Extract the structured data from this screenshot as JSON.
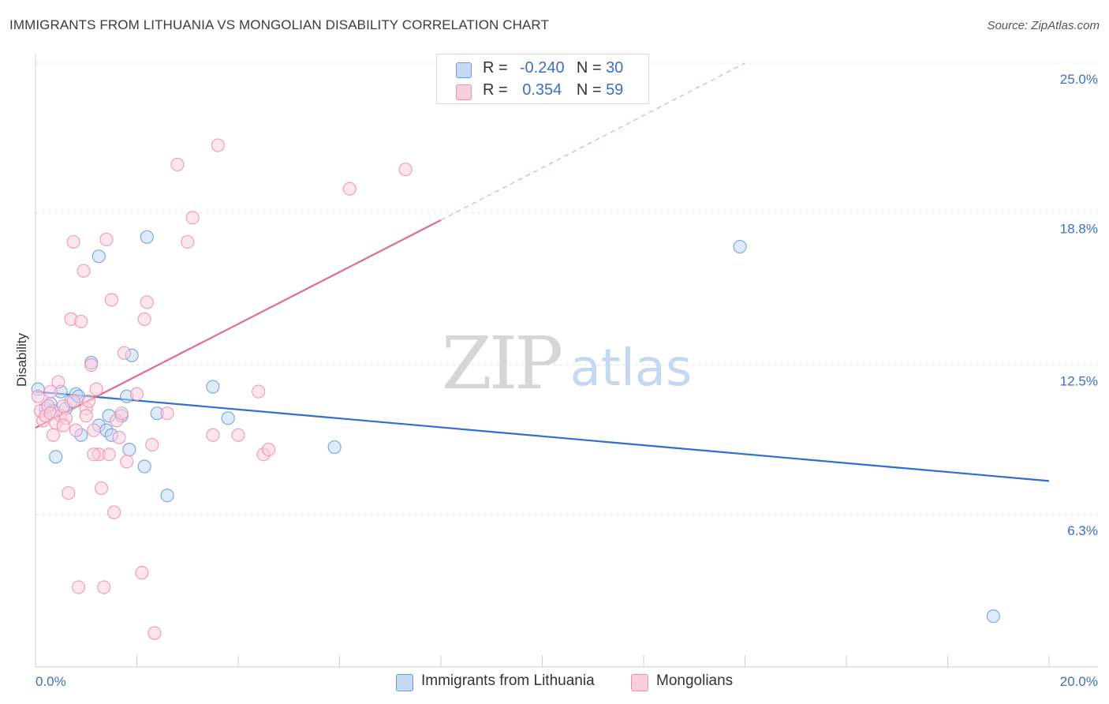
{
  "title": "IMMIGRANTS FROM LITHUANIA VS MONGOLIAN DISABILITY CORRELATION CHART",
  "source": "Source: ZipAtlas.com",
  "watermark": {
    "zip": "ZIP",
    "atlas": "atlas"
  },
  "legend": {
    "rows": [
      {
        "r_label": "R =",
        "r_value": "-0.240",
        "n_label": "N =",
        "n_value": "30"
      },
      {
        "r_label": "R =",
        "r_value": "0.354",
        "n_label": "N =",
        "n_value": "59"
      }
    ]
  },
  "colors": {
    "blue": "#6a9be0",
    "blue_fill": "#c5d9f5",
    "blue_line": "#2f6fce",
    "pink": "#ee8fb0",
    "pink_fill": "#f9cfdf",
    "pink_line": "#e46a93",
    "axis_text": "#3b6fc4"
  },
  "chart_data": {
    "type": "scatter",
    "title": "IMMIGRANTS FROM LITHUANIA VS MONGOLIAN DISABILITY CORRELATION CHART",
    "xlabel": "",
    "ylabel": "Disability",
    "xlim": [
      0,
      20
    ],
    "ylim": [
      0,
      25
    ],
    "x_tick_labels": [
      "0.0%",
      "20.0%"
    ],
    "y_ticks": [
      6.3,
      12.5,
      18.8,
      25.0
    ],
    "y_tick_labels": [
      "6.3%",
      "12.5%",
      "18.8%",
      "25.0%"
    ],
    "grid": true,
    "legend_position": "bottom-center",
    "series": [
      {
        "name": "Immigrants from Lithuania",
        "color": "blue",
        "R": -0.24,
        "N": 30,
        "trend": {
          "x": [
            0,
            20
          ],
          "y": [
            11.4,
            7.7
          ],
          "dashed_to": null
        },
        "points": [
          [
            0.05,
            11.5
          ],
          [
            0.2,
            10.7
          ],
          [
            0.3,
            10.9
          ],
          [
            0.35,
            10.6
          ],
          [
            0.4,
            8.7
          ],
          [
            0.5,
            11.4
          ],
          [
            0.6,
            10.7
          ],
          [
            0.7,
            11.0
          ],
          [
            0.8,
            11.3
          ],
          [
            0.9,
            9.6
          ],
          [
            1.1,
            12.6
          ],
          [
            1.25,
            10.0
          ],
          [
            1.4,
            9.8
          ],
          [
            1.45,
            10.4
          ],
          [
            1.5,
            9.6
          ],
          [
            1.7,
            10.4
          ],
          [
            1.8,
            11.2
          ],
          [
            1.85,
            9.0
          ],
          [
            1.9,
            12.9
          ],
          [
            2.15,
            8.3
          ],
          [
            2.2,
            17.8
          ],
          [
            2.4,
            10.5
          ],
          [
            2.6,
            7.1
          ],
          [
            3.5,
            11.6
          ],
          [
            3.8,
            10.3
          ],
          [
            5.9,
            9.1
          ],
          [
            13.9,
            17.4
          ],
          [
            18.9,
            2.1
          ],
          [
            1.25,
            17.0
          ],
          [
            0.85,
            11.2
          ]
        ]
      },
      {
        "name": "Mongolians",
        "color": "pink",
        "R": 0.354,
        "N": 59,
        "trend": {
          "x": [
            0,
            8
          ],
          "y": [
            9.9,
            18.5
          ],
          "dashed_to": {
            "x": 14,
            "y": 25
          }
        },
        "points": [
          [
            0.05,
            11.2
          ],
          [
            0.1,
            10.6
          ],
          [
            0.15,
            10.2
          ],
          [
            0.2,
            10.4
          ],
          [
            0.25,
            10.8
          ],
          [
            0.3,
            10.5
          ],
          [
            0.35,
            9.6
          ],
          [
            0.4,
            10.1
          ],
          [
            0.45,
            11.8
          ],
          [
            0.5,
            10.4
          ],
          [
            0.55,
            10.8
          ],
          [
            0.6,
            10.3
          ],
          [
            0.65,
            7.2
          ],
          [
            0.7,
            14.4
          ],
          [
            0.75,
            17.6
          ],
          [
            0.8,
            9.8
          ],
          [
            0.85,
            3.3
          ],
          [
            0.9,
            14.3
          ],
          [
            0.95,
            16.4
          ],
          [
            1.0,
            10.7
          ],
          [
            1.05,
            11.0
          ],
          [
            1.1,
            12.5
          ],
          [
            1.15,
            9.8
          ],
          [
            1.2,
            11.5
          ],
          [
            1.25,
            8.8
          ],
          [
            1.3,
            7.4
          ],
          [
            1.35,
            3.3
          ],
          [
            1.4,
            17.7
          ],
          [
            1.45,
            8.8
          ],
          [
            1.5,
            15.2
          ],
          [
            1.55,
            6.4
          ],
          [
            1.6,
            10.2
          ],
          [
            1.65,
            9.5
          ],
          [
            1.7,
            10.5
          ],
          [
            1.75,
            13.0
          ],
          [
            1.8,
            8.5
          ],
          [
            2.0,
            11.3
          ],
          [
            2.1,
            3.9
          ],
          [
            2.15,
            14.4
          ],
          [
            2.2,
            15.1
          ],
          [
            2.3,
            9.2
          ],
          [
            2.35,
            1.4
          ],
          [
            2.6,
            10.5
          ],
          [
            2.8,
            20.8
          ],
          [
            3.0,
            17.6
          ],
          [
            3.1,
            18.6
          ],
          [
            3.5,
            9.6
          ],
          [
            3.6,
            21.6
          ],
          [
            4.0,
            9.6
          ],
          [
            4.4,
            11.4
          ],
          [
            4.5,
            8.8
          ],
          [
            4.6,
            9.0
          ],
          [
            6.2,
            19.8
          ],
          [
            7.3,
            20.6
          ],
          [
            1.0,
            10.4
          ],
          [
            0.3,
            11.4
          ],
          [
            0.75,
            11.0
          ],
          [
            1.15,
            8.8
          ],
          [
            0.55,
            10.0
          ]
        ]
      }
    ]
  },
  "bottom_legend": [
    {
      "label": "Immigrants from Lithuania"
    },
    {
      "label": "Mongolians"
    }
  ]
}
